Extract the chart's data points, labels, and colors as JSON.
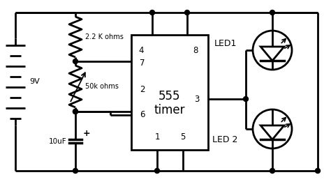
{
  "bg_color": "#ffffff",
  "lc": "#000000",
  "lw": 2.0,
  "bat_label": "9V",
  "r1_label": "2.2 K ohms",
  "r2_label": "50k ohms",
  "cap_label": "10uF",
  "ic_label1": "555",
  "ic_label2": "timer",
  "led1_label": "LED1",
  "led2_label": "LED 2",
  "pin4": "4",
  "pin8": "8",
  "pin7": "7",
  "pin2": "2",
  "pin6": "6",
  "pin3": "3",
  "pin1": "1",
  "pin5": "5"
}
